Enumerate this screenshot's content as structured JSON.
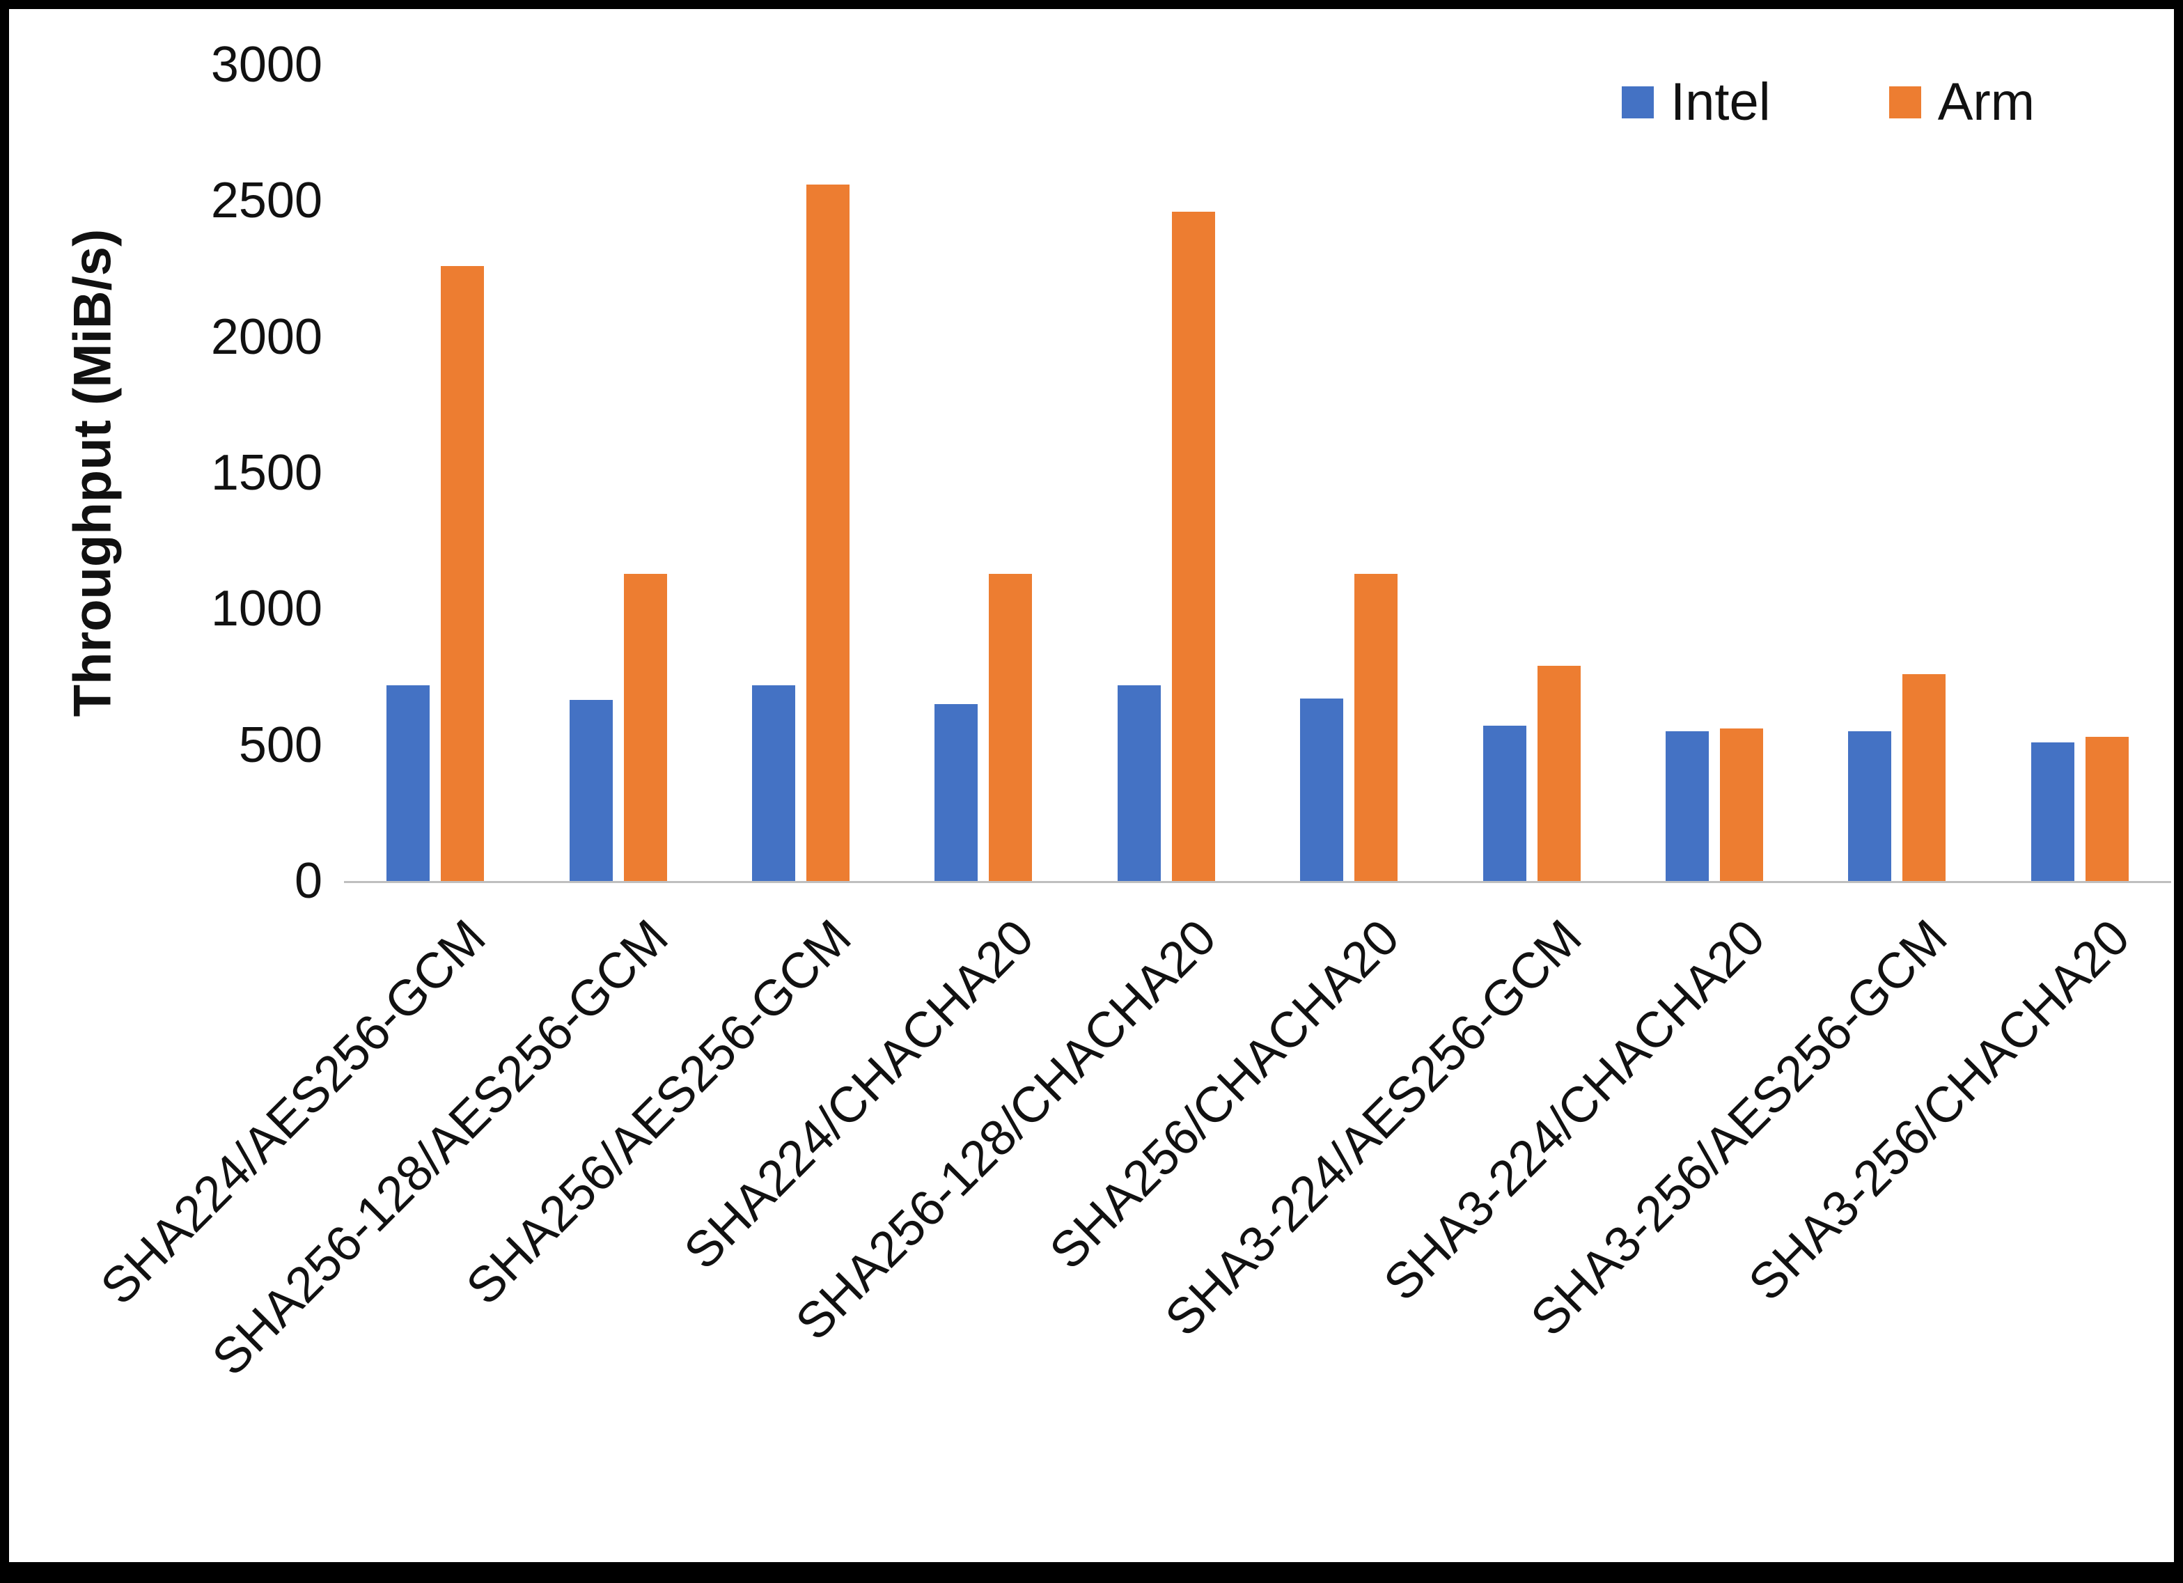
{
  "chart_data": {
    "type": "bar",
    "title": "",
    "xlabel": "",
    "ylabel": "Throughput (MiB/s)",
    "ylim": [
      0,
      3000
    ],
    "ytick_step": 500,
    "grid": false,
    "legend_position": "top-right",
    "categories": [
      "SHA224/AES256-GCM",
      "SHA256-128/AES256-GCM",
      "SHA256/AES256-GCM",
      "SHA224/CHACHA20",
      "SHA256-128/CHACHA20",
      "SHA256/CHACHA20",
      "SHA3-224/AES256-GCM",
      "SHA3-224/CHACHA20",
      "SHA3-256/AES256-GCM",
      "SHA3-256/CHACHA20"
    ],
    "series": [
      {
        "name": "Intel",
        "color": "#4472C4",
        "values": [
          720,
          665,
          720,
          650,
          720,
          670,
          570,
          550,
          550,
          510
        ]
      },
      {
        "name": "Arm",
        "color": "#ED7D31",
        "values": [
          2260,
          1130,
          2560,
          1130,
          2460,
          1130,
          790,
          560,
          760,
          530
        ]
      }
    ]
  }
}
